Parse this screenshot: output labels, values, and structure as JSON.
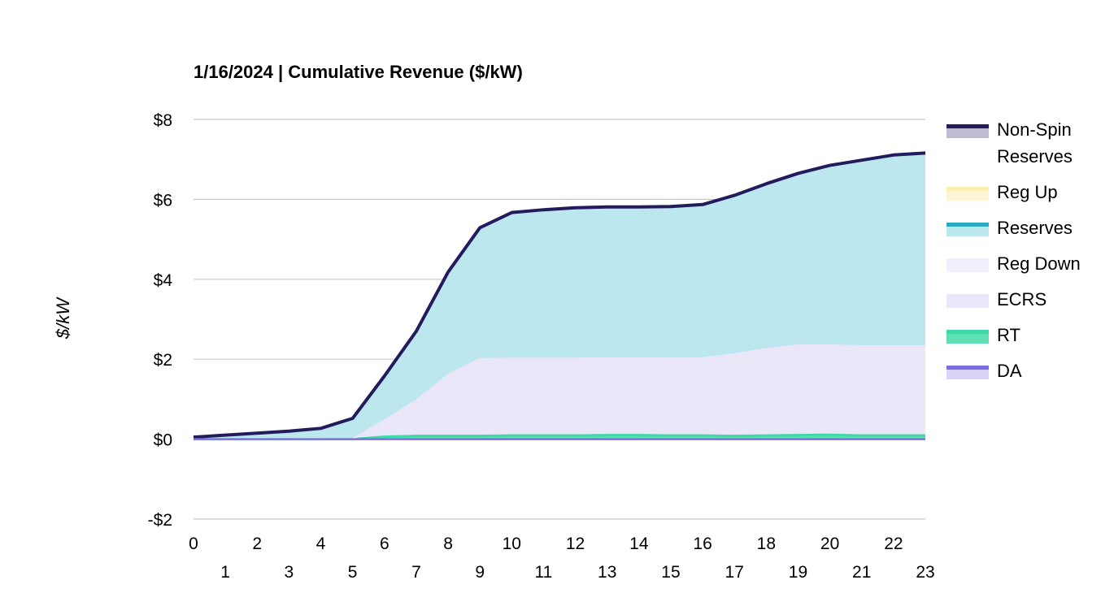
{
  "chart_data": {
    "type": "area",
    "title": "1/16/2024 | Cumulative Revenue ($/kW)",
    "xlabel": "",
    "ylabel": "$/kW",
    "x": [
      0,
      1,
      2,
      3,
      4,
      5,
      6,
      7,
      8,
      9,
      10,
      11,
      12,
      13,
      14,
      15,
      16,
      17,
      18,
      19,
      20,
      21,
      22,
      23
    ],
    "xlim": [
      0,
      23
    ],
    "ylim": [
      -2,
      8
    ],
    "y_ticks": [
      -2,
      0,
      2,
      4,
      6,
      8
    ],
    "y_tick_labels": [
      "-$2",
      "$0",
      "$2",
      "$4",
      "$6",
      "$8"
    ],
    "stacked": true,
    "grid": true,
    "legend_position": "right",
    "series": [
      {
        "name": "DA",
        "line_color": "#7B6FE0",
        "fill_color": "#D9D4F5",
        "values": [
          0,
          0,
          0,
          0,
          0,
          0,
          0,
          0,
          0,
          0,
          0,
          0,
          0,
          0,
          0,
          0,
          0,
          0,
          0,
          0,
          0,
          0,
          0,
          0
        ]
      },
      {
        "name": "RT",
        "line_color": "#3FD9A9",
        "fill_color": "#5EE0B4",
        "values": [
          0,
          0,
          0,
          0,
          0,
          0,
          0.06,
          0.08,
          0.08,
          0.08,
          0.09,
          0.09,
          0.09,
          0.1,
          0.1,
          0.09,
          0.09,
          0.08,
          0.09,
          0.1,
          0.11,
          0.09,
          0.09,
          0.09
        ]
      },
      {
        "name": "ECRS",
        "line_color": "#E9E6FA",
        "fill_color": "#EAE7F9",
        "values": [
          0,
          0,
          0,
          0,
          0,
          0,
          0.4,
          0.88,
          1.52,
          1.92,
          1.92,
          1.92,
          1.92,
          1.92,
          1.92,
          1.92,
          1.93,
          2.04,
          2.16,
          2.24,
          2.23,
          2.23,
          2.23,
          2.23
        ]
      },
      {
        "name": "Reg Down",
        "line_color": "#F0EEFB",
        "fill_color": "#F2F0FC",
        "values": [
          0,
          0,
          0,
          0,
          0,
          0,
          0,
          0,
          0,
          0,
          0,
          0,
          0,
          0,
          0,
          0,
          0,
          0,
          0,
          0,
          0,
          0,
          0,
          0
        ]
      },
      {
        "name": "Reserves",
        "line_color": "#2AA9C0",
        "fill_color": "#BDE7EE",
        "values": [
          0.05,
          0.1,
          0.15,
          0.2,
          0.27,
          0.52,
          1.12,
          1.74,
          2.58,
          3.29,
          3.66,
          3.73,
          3.78,
          3.79,
          3.79,
          3.81,
          3.85,
          3.98,
          4.14,
          4.31,
          4.51,
          4.66,
          4.79,
          4.84
        ]
      },
      {
        "name": "Reg Up",
        "line_color": "#FBEFB0",
        "fill_color": "#FDF6D6",
        "values": [
          0,
          0,
          0,
          0,
          0,
          0,
          0,
          0,
          0,
          0,
          0,
          0,
          0,
          0,
          0,
          0,
          0,
          0,
          0,
          0,
          0,
          0,
          0,
          0
        ]
      },
      {
        "name": "Non-Spin Reserves",
        "line_color": "#231C5C",
        "fill_color": "#BFBBD2",
        "values": [
          0,
          0,
          0,
          0,
          0,
          0,
          0,
          0,
          0,
          0,
          0,
          0,
          0,
          0,
          0,
          0,
          0,
          0,
          0,
          0,
          0,
          0,
          0,
          0
        ]
      }
    ],
    "legend_order": [
      "Non-Spin Reserves",
      "Reg Up",
      "Reserves",
      "Reg Down",
      "ECRS",
      "RT",
      "DA"
    ]
  }
}
